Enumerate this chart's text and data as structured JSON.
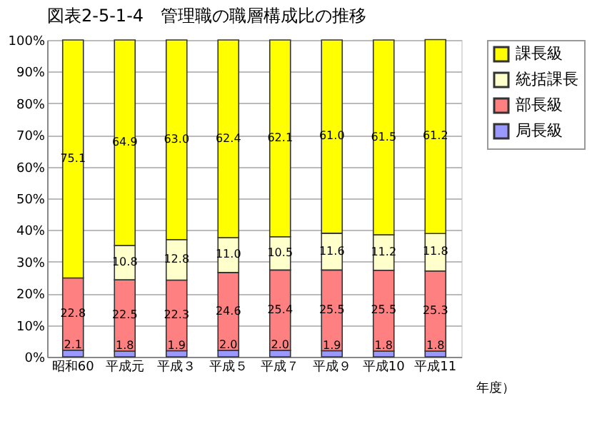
{
  "chart_data": {
    "type": "bar",
    "title": "図表2-5-1-4　管理職の職層構成比の推移",
    "xlabel": "年度）",
    "stacked": true,
    "legend": "right",
    "grid": "y",
    "categories": [
      "昭和60",
      "平成元",
      "平成３",
      "平成５",
      "平成７",
      "平成９",
      "平成10",
      "平成11"
    ],
    "ylim": [
      0,
      100
    ],
    "yticks": [
      {
        "value": 0,
        "label": "0%"
      },
      {
        "value": 10,
        "label": "10%"
      },
      {
        "value": 20,
        "label": "20%"
      },
      {
        "value": 30,
        "label": "30%"
      },
      {
        "value": 40,
        "label": "40%"
      },
      {
        "value": 50,
        "label": "50%"
      },
      {
        "value": 60,
        "label": "60%"
      },
      {
        "value": 70,
        "label": "70%"
      },
      {
        "value": 80,
        "label": "80%"
      },
      {
        "value": 90,
        "label": "90%"
      },
      {
        "value": 100,
        "label": "100%"
      }
    ],
    "series": [
      {
        "name": "局長級",
        "color": "#9999ff",
        "values": [
          2.1,
          1.8,
          1.9,
          2.0,
          2.0,
          1.9,
          1.8,
          1.8
        ],
        "value_labels": [
          "2.1",
          "1.8",
          "1.9",
          "2.0",
          "2.0",
          "1.9",
          "1.8",
          "1.8"
        ]
      },
      {
        "name": "部長級",
        "color": "#ff8080",
        "values": [
          22.8,
          22.5,
          22.3,
          24.6,
          25.4,
          25.5,
          25.5,
          25.3
        ],
        "value_labels": [
          "22.8",
          "22.5",
          "22.3",
          "24.6",
          "25.4",
          "25.5",
          "25.5",
          "25.3"
        ]
      },
      {
        "name": "統括課長",
        "color": "#ffffcc",
        "values": [
          null,
          10.8,
          12.8,
          11.0,
          10.5,
          11.6,
          11.2,
          11.8
        ],
        "value_labels": [
          null,
          "10.8",
          "12.8",
          "11.0",
          "10.5",
          "11.6",
          "11.2",
          "11.8"
        ]
      },
      {
        "name": "課長級",
        "color": "#ffff00",
        "values": [
          75.1,
          64.9,
          63.0,
          62.4,
          62.1,
          61.0,
          61.5,
          61.2
        ],
        "value_labels": [
          "75.1",
          "64.9",
          "63.0",
          "62.4",
          "62.1",
          "61.0",
          "61.5",
          "61.2"
        ]
      }
    ]
  }
}
